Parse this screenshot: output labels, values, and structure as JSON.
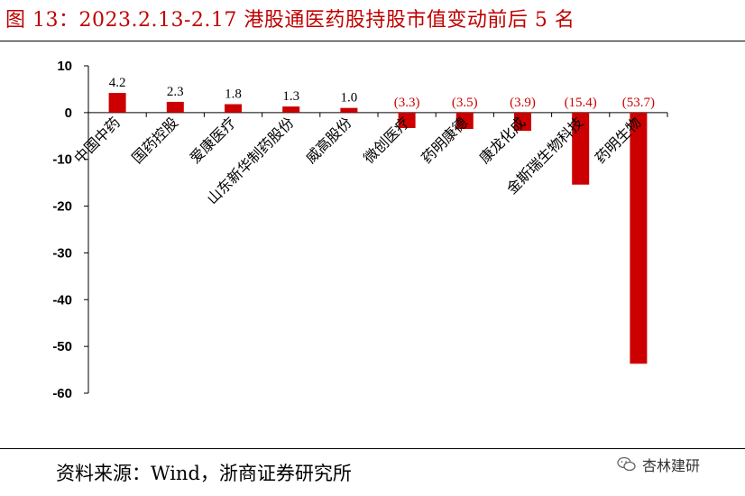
{
  "figure": {
    "title": "图 13：2023.2.13-2.17 港股通医药股持股市值变动前后 5 名",
    "source": "资料来源：Wind，浙商证券研究所",
    "watermark": "杏林建研"
  },
  "colors": {
    "bar": "#cc0000",
    "title": "#c00000",
    "negative_label": "#cc0000"
  },
  "chart_data": {
    "type": "bar",
    "categories": [
      "中国中药",
      "国药控股",
      "爱康医疗",
      "山东新华制药股份",
      "威高股份",
      "微创医疗",
      "药明康德",
      "康龙化成",
      "金斯瑞生物科技",
      "药明生物"
    ],
    "values": [
      4.2,
      2.3,
      1.8,
      1.3,
      1.0,
      -3.3,
      -3.5,
      -3.9,
      -15.4,
      -53.7
    ],
    "data_labels": [
      "4.2",
      "2.3",
      "1.8",
      "1.3",
      "1.0",
      "(3.3)",
      "(3.5)",
      "(3.9)",
      "(15.4)",
      "(53.7)"
    ],
    "ylim": [
      -60,
      10
    ],
    "yticks": [
      10,
      0,
      -10,
      -20,
      -30,
      -40,
      -50,
      -60
    ],
    "title": "",
    "xlabel": "",
    "ylabel": "",
    "grid": false,
    "legend": "none"
  }
}
